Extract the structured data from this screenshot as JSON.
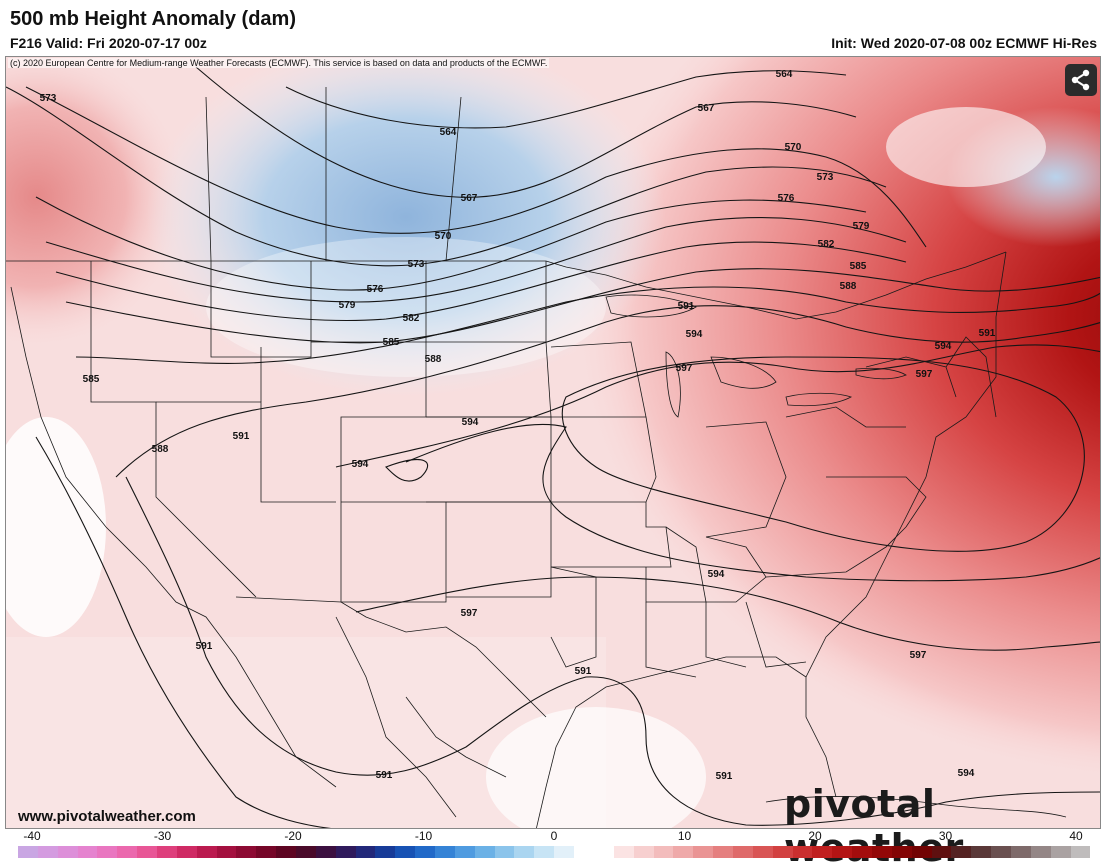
{
  "header": {
    "title": "500 mb Height Anomaly (dam)",
    "valid": "F216 Valid: Fri 2020-07-17 00z",
    "init": "Init: Wed 2020-07-08 00z ECMWF Hi-Res"
  },
  "copyright": "(c) 2020 European Centre for Medium-range Weather Forecasts (ECMWF). This service is based on data and products of the ECMWF.",
  "footer": {
    "website": "www.pivotalweather.com",
    "brand": "pivotal weather"
  },
  "icons": {
    "share": "share-icon"
  },
  "contours": {
    "labels": [
      "564",
      "567",
      "570",
      "573",
      "576",
      "579",
      "582",
      "585",
      "588",
      "591",
      "594",
      "597"
    ]
  },
  "map_labels": [
    {
      "id": "l573a",
      "text": "573"
    },
    {
      "id": "l564a",
      "text": "564"
    },
    {
      "id": "l564b",
      "text": "564"
    },
    {
      "id": "l567a",
      "text": "567"
    },
    {
      "id": "l567b",
      "text": "567"
    },
    {
      "id": "l570a",
      "text": "570"
    },
    {
      "id": "l570b",
      "text": "570"
    },
    {
      "id": "l573b",
      "text": "573"
    },
    {
      "id": "l573c",
      "text": "573"
    },
    {
      "id": "l576a",
      "text": "576"
    },
    {
      "id": "l576b",
      "text": "576"
    },
    {
      "id": "l579a",
      "text": "579"
    },
    {
      "id": "l579b",
      "text": "579"
    },
    {
      "id": "l582a",
      "text": "582"
    },
    {
      "id": "l582b",
      "text": "582"
    },
    {
      "id": "l585a",
      "text": "585"
    },
    {
      "id": "l585b",
      "text": "585"
    },
    {
      "id": "l585c",
      "text": "585"
    },
    {
      "id": "l588a",
      "text": "588"
    },
    {
      "id": "l588b",
      "text": "588"
    },
    {
      "id": "l588c",
      "text": "588"
    },
    {
      "id": "l591a",
      "text": "591"
    },
    {
      "id": "l591b",
      "text": "591"
    },
    {
      "id": "l591c",
      "text": "591"
    },
    {
      "id": "l591d",
      "text": "591"
    },
    {
      "id": "l591e",
      "text": "591"
    },
    {
      "id": "l591f",
      "text": "591"
    },
    {
      "id": "l591g",
      "text": "591"
    },
    {
      "id": "l594a",
      "text": "594"
    },
    {
      "id": "l594b",
      "text": "594"
    },
    {
      "id": "l594c",
      "text": "594"
    },
    {
      "id": "l594d",
      "text": "594"
    },
    {
      "id": "l594e",
      "text": "594"
    },
    {
      "id": "l594f",
      "text": "594"
    },
    {
      "id": "l597a",
      "text": "597"
    },
    {
      "id": "l597b",
      "text": "597"
    },
    {
      "id": "l597c",
      "text": "597"
    },
    {
      "id": "l597d",
      "text": "597"
    }
  ],
  "colorbar": {
    "ticks": [
      "-40",
      "-30",
      "-20",
      "-10",
      "0",
      "10",
      "20",
      "30",
      "40"
    ],
    "colors": [
      "#c9a6e3",
      "#d49be0",
      "#dd8fd9",
      "#e583cf",
      "#e976c0",
      "#eb68ad",
      "#e85696",
      "#de3f7c",
      "#cf2a64",
      "#bb1a4f",
      "#a4103f",
      "#8d0a33",
      "#760628",
      "#5e0522",
      "#4a0a2a",
      "#3c1040",
      "#2f1a5c",
      "#22287a",
      "#173b98",
      "#1752b4",
      "#2169c8",
      "#3583d6",
      "#4f9be0",
      "#6bb1e6",
      "#8bc4eb",
      "#aad5f0",
      "#c7e4f5",
      "#e2f0f9",
      "#ffffff",
      "#ffffff",
      "#fbe3e3",
      "#f7cfcf",
      "#f3bcbc",
      "#efa9a9",
      "#ea9494",
      "#e57f7f",
      "#df6a6a",
      "#d95555",
      "#d24141",
      "#ca2f2f",
      "#c01f1f",
      "#b31414",
      "#a30d0d",
      "#930808",
      "#830505",
      "#720303",
      "#5f1010",
      "#542222",
      "#5a3838",
      "#6a5050",
      "#7e6a6a",
      "#948686",
      "#aaa2a2",
      "#bfbcbc"
    ]
  }
}
